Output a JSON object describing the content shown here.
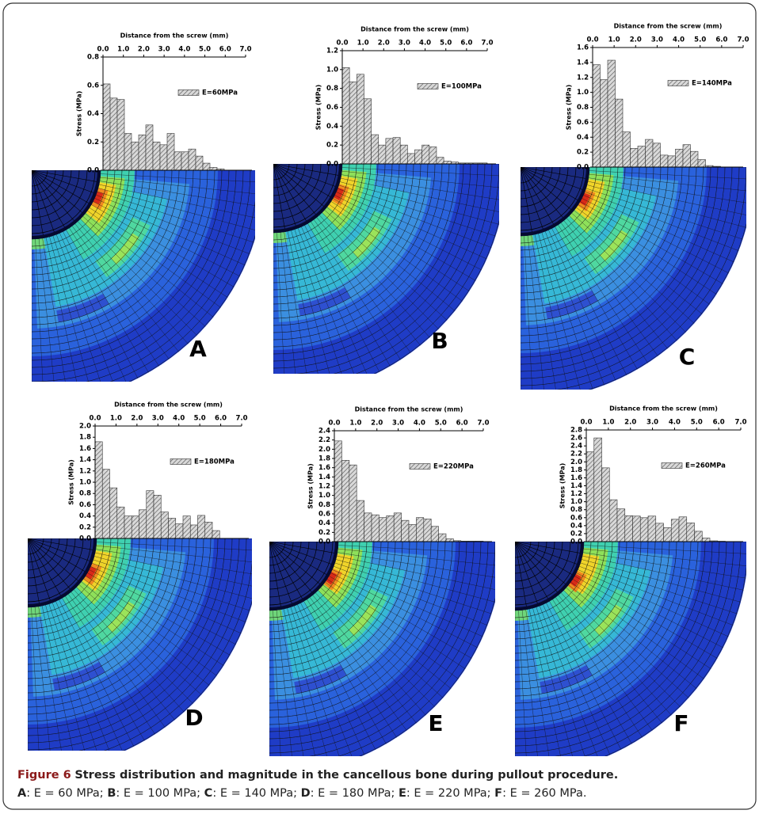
{
  "chart_data": [
    {
      "type": "histogram",
      "panel_label": "A",
      "title": "Distance from the screw (mm)",
      "y_label": "Stress (MPa)",
      "bins": [
        0,
        0.35,
        0.7,
        1.05,
        1.4,
        1.75,
        2.1,
        2.45,
        2.8,
        3.15,
        3.5,
        3.85,
        4.2,
        4.55,
        4.9,
        5.25,
        5.6,
        5.95,
        6.3,
        6.65,
        7.0
      ],
      "series": [
        {
          "name": "E=60MPa",
          "color": "#bdbdbd",
          "values": [
            0.61,
            0.51,
            0.5,
            0.26,
            0.2,
            0.25,
            0.32,
            0.2,
            0.18,
            0.26,
            0.13,
            0.13,
            0.15,
            0.1,
            0.05,
            0.02,
            0.01,
            0,
            0,
            0
          ]
        }
      ],
      "xlim": [
        0,
        7
      ],
      "xticks": [
        {
          "value": 0,
          "label": "0.0"
        },
        {
          "value": 1,
          "label": "1.0"
        },
        {
          "value": 2,
          "label": "2.0"
        },
        {
          "value": 3,
          "label": "3.0"
        },
        {
          "value": 4,
          "label": "4.0"
        },
        {
          "value": 5,
          "label": "5.0"
        },
        {
          "value": 6,
          "label": "6.0"
        },
        {
          "value": 7,
          "label": "7.0"
        }
      ],
      "ylim": [
        0,
        0.8
      ],
      "yticks": [
        {
          "value": 0,
          "label": "0.0"
        },
        0.2,
        0.4,
        0.6,
        0.8
      ]
    },
    {
      "type": "histogram",
      "panel_label": "B",
      "title": "Distance from the screw (mm)",
      "y_label": "Stress (MPa)",
      "bins": [
        0,
        0.35,
        0.7,
        1.05,
        1.4,
        1.75,
        2.1,
        2.45,
        2.8,
        3.15,
        3.5,
        3.85,
        4.2,
        4.55,
        4.9,
        5.25,
        5.6,
        5.95,
        6.3,
        6.65,
        7.0
      ],
      "series": [
        {
          "name": "E=100MPa",
          "color": "#bdbdbd",
          "values": [
            1.02,
            0.87,
            0.95,
            0.69,
            0.31,
            0.2,
            0.27,
            0.28,
            0.2,
            0.11,
            0.15,
            0.2,
            0.18,
            0.07,
            0.03,
            0.02,
            0.01,
            0.01,
            0.01,
            0.01
          ]
        }
      ],
      "xlim": [
        0,
        7
      ],
      "xticks": [
        {
          "value": 0,
          "label": "0.0"
        },
        {
          "value": 1,
          "label": "1.0"
        },
        {
          "value": 2,
          "label": "2.0"
        },
        {
          "value": 3,
          "label": "3.0"
        },
        {
          "value": 4,
          "label": "4.0"
        },
        {
          "value": 5,
          "label": "5.0"
        },
        {
          "value": 6,
          "label": "6.0"
        },
        {
          "value": 7,
          "label": "7.0"
        }
      ],
      "ylim": [
        0,
        1.2
      ],
      "yticks": [
        {
          "value": 0,
          "label": "0.0"
        },
        0.2,
        0.4,
        0.6,
        0.8,
        {
          "value": 1,
          "label": "1.0"
        },
        1.2
      ]
    },
    {
      "type": "histogram",
      "panel_label": "C",
      "title": "Distance from the screw (mm)",
      "y_label": "Stress (MPa)",
      "bins": [
        0,
        0.35,
        0.7,
        1.05,
        1.4,
        1.75,
        2.1,
        2.45,
        2.8,
        3.15,
        3.5,
        3.85,
        4.2,
        4.55,
        4.9,
        5.25,
        5.6,
        5.95,
        6.3,
        6.65,
        7.0
      ],
      "series": [
        {
          "name": "E=140MPa",
          "color": "#bdbdbd",
          "values": [
            1.37,
            1.17,
            1.43,
            0.91,
            0.47,
            0.25,
            0.28,
            0.37,
            0.32,
            0.16,
            0.15,
            0.24,
            0.3,
            0.21,
            0.1,
            0.02,
            0.01,
            0,
            0,
            0
          ]
        }
      ],
      "xlim": [
        0,
        7
      ],
      "xticks": [
        {
          "value": 0,
          "label": "0.0"
        },
        {
          "value": 1,
          "label": "1.0"
        },
        {
          "value": 2,
          "label": "2.0"
        },
        {
          "value": 3,
          "label": "3.0"
        },
        {
          "value": 4,
          "label": "4.0"
        },
        {
          "value": 5,
          "label": "5.0"
        },
        {
          "value": 6,
          "label": "6.0"
        },
        {
          "value": 7,
          "label": "7.0"
        }
      ],
      "ylim": [
        0,
        1.6
      ],
      "yticks": [
        {
          "value": 0,
          "label": "0.0"
        },
        0.2,
        0.4,
        0.6,
        0.8,
        {
          "value": 1,
          "label": "1.0"
        },
        1.2,
        1.4,
        1.6
      ]
    },
    {
      "type": "histogram",
      "panel_label": "D",
      "title": "Distance from the screw (mm)",
      "y_label": "Stress (MPa)",
      "bins": [
        0,
        0.35,
        0.7,
        1.05,
        1.4,
        1.75,
        2.1,
        2.45,
        2.8,
        3.15,
        3.5,
        3.85,
        4.2,
        4.55,
        4.9,
        5.25,
        5.6,
        5.95,
        6.3,
        6.65,
        7.0
      ],
      "series": [
        {
          "name": "E=180MPa",
          "color": "#bdbdbd",
          "values": [
            1.72,
            1.23,
            0.9,
            0.56,
            0.4,
            0.4,
            0.51,
            0.85,
            0.77,
            0.47,
            0.36,
            0.26,
            0.4,
            0.24,
            0.41,
            0.29,
            0.14,
            0,
            0,
            0
          ]
        }
      ],
      "xlim": [
        0,
        7
      ],
      "xticks": [
        {
          "value": 0,
          "label": "0.0"
        },
        {
          "value": 1,
          "label": "1.0"
        },
        {
          "value": 2,
          "label": "2.0"
        },
        {
          "value": 3,
          "label": "3.0"
        },
        {
          "value": 4,
          "label": "4.0"
        },
        {
          "value": 5,
          "label": "5.0"
        },
        {
          "value": 6,
          "label": "6.0"
        },
        {
          "value": 7,
          "label": "7.0"
        }
      ],
      "ylim": [
        0,
        2
      ],
      "yticks": [
        {
          "value": 0,
          "label": "0.0"
        },
        0.2,
        0.4,
        0.6,
        0.8,
        {
          "value": 1,
          "label": "1.0"
        },
        1.2,
        1.4,
        1.6,
        1.8,
        {
          "value": 2,
          "label": "2.0"
        }
      ]
    },
    {
      "type": "histogram",
      "panel_label": "E",
      "title": "Distance from the screw (mm)",
      "y_label": "Stress (MPa)",
      "bins": [
        0,
        0.35,
        0.7,
        1.05,
        1.4,
        1.75,
        2.1,
        2.45,
        2.8,
        3.15,
        3.5,
        3.85,
        4.2,
        4.55,
        4.9,
        5.25,
        5.6,
        5.95,
        6.3,
        6.65,
        7.0
      ],
      "series": [
        {
          "name": "E=220MPa",
          "color": "#bdbdbd",
          "values": [
            2.18,
            1.76,
            1.66,
            0.89,
            0.62,
            0.58,
            0.52,
            0.56,
            0.62,
            0.46,
            0.37,
            0.52,
            0.49,
            0.33,
            0.17,
            0.06,
            0.02,
            0.01,
            0.01,
            0.01
          ]
        }
      ],
      "xlim": [
        0,
        7
      ],
      "xticks": [
        {
          "value": 0,
          "label": "0.0"
        },
        {
          "value": 1,
          "label": "1.0"
        },
        {
          "value": 2,
          "label": "2.0"
        },
        {
          "value": 3,
          "label": "3.0"
        },
        {
          "value": 4,
          "label": "4.0"
        },
        {
          "value": 5,
          "label": "5.0"
        },
        {
          "value": 6,
          "label": "6.0"
        },
        {
          "value": 7,
          "label": "7.0"
        }
      ],
      "ylim": [
        0,
        2.4
      ],
      "yticks": [
        {
          "value": 0,
          "label": "0.0"
        },
        0.2,
        0.4,
        0.6,
        0.8,
        {
          "value": 1,
          "label": "1.0"
        },
        1.2,
        1.4,
        1.6,
        1.8,
        {
          "value": 2,
          "label": "2.0"
        },
        2.2,
        2.4
      ]
    },
    {
      "type": "histogram",
      "panel_label": "F",
      "title": "Distance from the screw (mm)",
      "y_label": "Stress (MPa)",
      "bins": [
        0,
        0.35,
        0.7,
        1.05,
        1.4,
        1.75,
        2.1,
        2.45,
        2.8,
        3.15,
        3.5,
        3.85,
        4.2,
        4.55,
        4.9,
        5.25,
        5.6,
        5.95,
        6.3,
        6.65,
        7.0
      ],
      "series": [
        {
          "name": "E=260MPa",
          "color": "#bdbdbd",
          "values": [
            2.25,
            2.6,
            1.85,
            1.05,
            0.82,
            0.65,
            0.64,
            0.6,
            0.64,
            0.46,
            0.35,
            0.56,
            0.62,
            0.47,
            0.26,
            0.09,
            0.02,
            0.01,
            0,
            0
          ]
        }
      ],
      "xlim": [
        0,
        7
      ],
      "xticks": [
        {
          "value": 0,
          "label": "0.0"
        },
        {
          "value": 1,
          "label": "1.0"
        },
        {
          "value": 2,
          "label": "2.0"
        },
        {
          "value": 3,
          "label": "3.0"
        },
        {
          "value": 4,
          "label": "4.0"
        },
        {
          "value": 5,
          "label": "5.0"
        },
        {
          "value": 6,
          "label": "6.0"
        },
        {
          "value": 7,
          "label": "7.0"
        }
      ],
      "ylim": [
        0,
        2.8
      ],
      "yticks": [
        {
          "value": 0,
          "label": "0.0"
        },
        0.2,
        0.4,
        0.6,
        0.8,
        {
          "value": 1,
          "label": "1.0"
        },
        1.2,
        1.4,
        1.6,
        1.8,
        {
          "value": 2,
          "label": "2.0"
        },
        2.2,
        2.4,
        2.6,
        2.8
      ]
    }
  ],
  "caption": {
    "label": "Figure 6",
    "title": "Stress distribution and magnitude in the cancellous bone during pullout procedure.",
    "items": [
      {
        "key": "A",
        "text": ": E = 60 MPa;"
      },
      {
        "key": "B",
        "text": ": E = 100 MPa;"
      },
      {
        "key": "C",
        "text": ": E = 140 MPa;"
      },
      {
        "key": "D",
        "text": ": E = 180 MPa;"
      },
      {
        "key": "E",
        "text": ": E = 220 MPa;"
      },
      {
        "key": "F",
        "text": ": E = 260 MPa."
      }
    ]
  }
}
